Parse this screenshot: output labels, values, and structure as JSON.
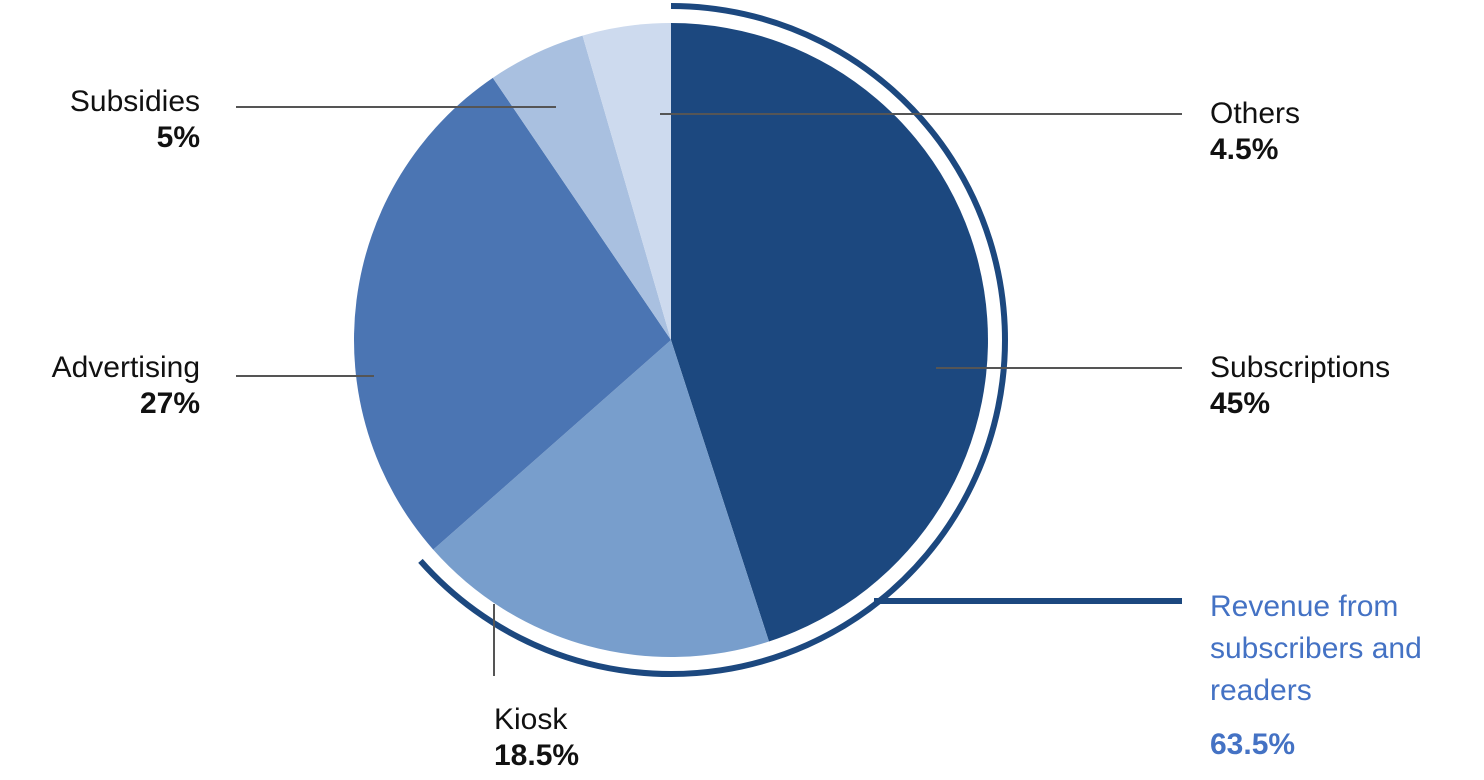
{
  "chart_data": {
    "type": "pie",
    "slices": [
      {
        "label": "Subscriptions",
        "value_label": "45%",
        "value": 45.0,
        "color": "#1c487f"
      },
      {
        "label": "Kiosk",
        "value_label": "18.5%",
        "value": 18.5,
        "color": "#789ecc"
      },
      {
        "label": "Advertising",
        "value_label": "27%",
        "value": 27.0,
        "color": "#4b75b3"
      },
      {
        "label": "Subsidies",
        "value_label": "5%",
        "value": 5.0,
        "color": "#a9c0e0"
      },
      {
        "label": "Others",
        "value_label": "4.5%",
        "value": 4.5,
        "color": "#cddaee"
      }
    ],
    "highlight": {
      "label": "Revenue from subscribers and readers",
      "value_label": "63.5%",
      "value": 63.5,
      "members": [
        "Subscriptions",
        "Kiosk"
      ],
      "color": "#1c487f",
      "text_color": "#4472c4"
    }
  }
}
